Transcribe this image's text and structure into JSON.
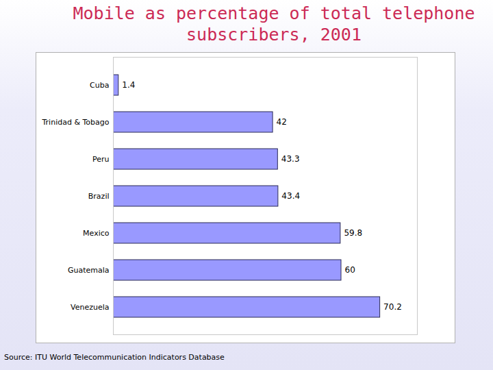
{
  "chart_data": {
    "type": "bar",
    "orientation": "horizontal",
    "title": "Mobile as percentage of total telephone subscribers, 2001",
    "categories": [
      "Cuba",
      "Trinidad & Tobago",
      "Peru",
      "Brazil",
      "Mexico",
      "Guatemala",
      "Venezuela"
    ],
    "values": [
      1.4,
      42,
      43.3,
      43.4,
      59.8,
      60,
      70.2
    ],
    "color": "#9999ff",
    "xlim": [
      0,
      80
    ],
    "data_labels": true,
    "tick_labels": "y",
    "grid": false,
    "source": "Source: ITU World Telecommunication Indicators Database"
  }
}
